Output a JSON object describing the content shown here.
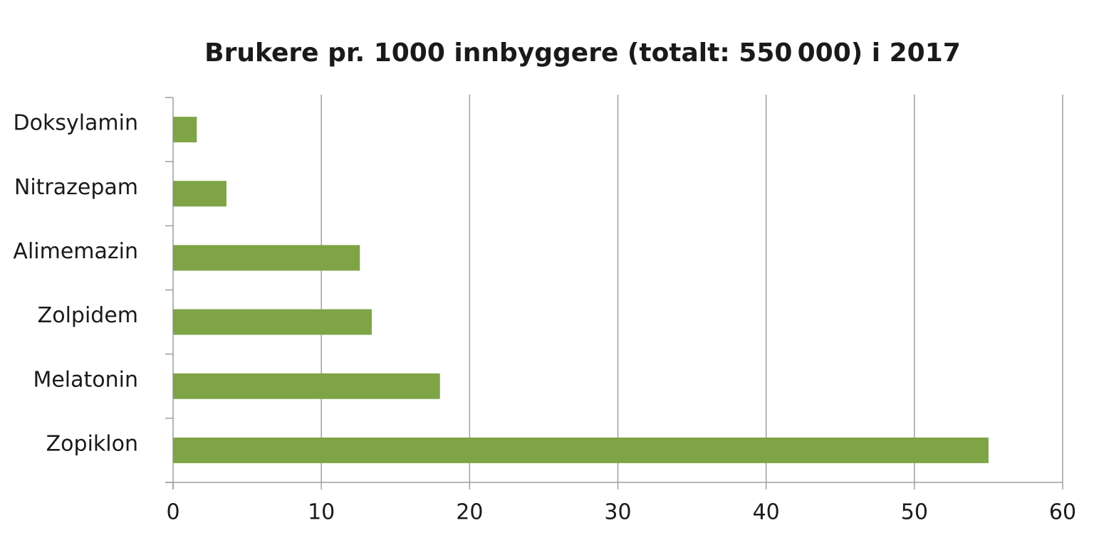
{
  "chart_data": {
    "type": "bar",
    "orientation": "horizontal",
    "title": "Brukere pr. 1000 innbyggere (totalt: 550 000) i 2017",
    "categories": [
      "Doksylamin",
      "Nitrazepam",
      "Alimemazin",
      "Zolpidem",
      "Melatonin",
      "Zopiklon"
    ],
    "values": [
      1.6,
      3.6,
      12.6,
      13.4,
      18.0,
      55.0
    ],
    "color": "#7ea446",
    "xlim": [
      0,
      60
    ],
    "xticks": [
      0,
      10,
      20,
      30,
      40,
      50,
      60
    ],
    "grid": true
  }
}
